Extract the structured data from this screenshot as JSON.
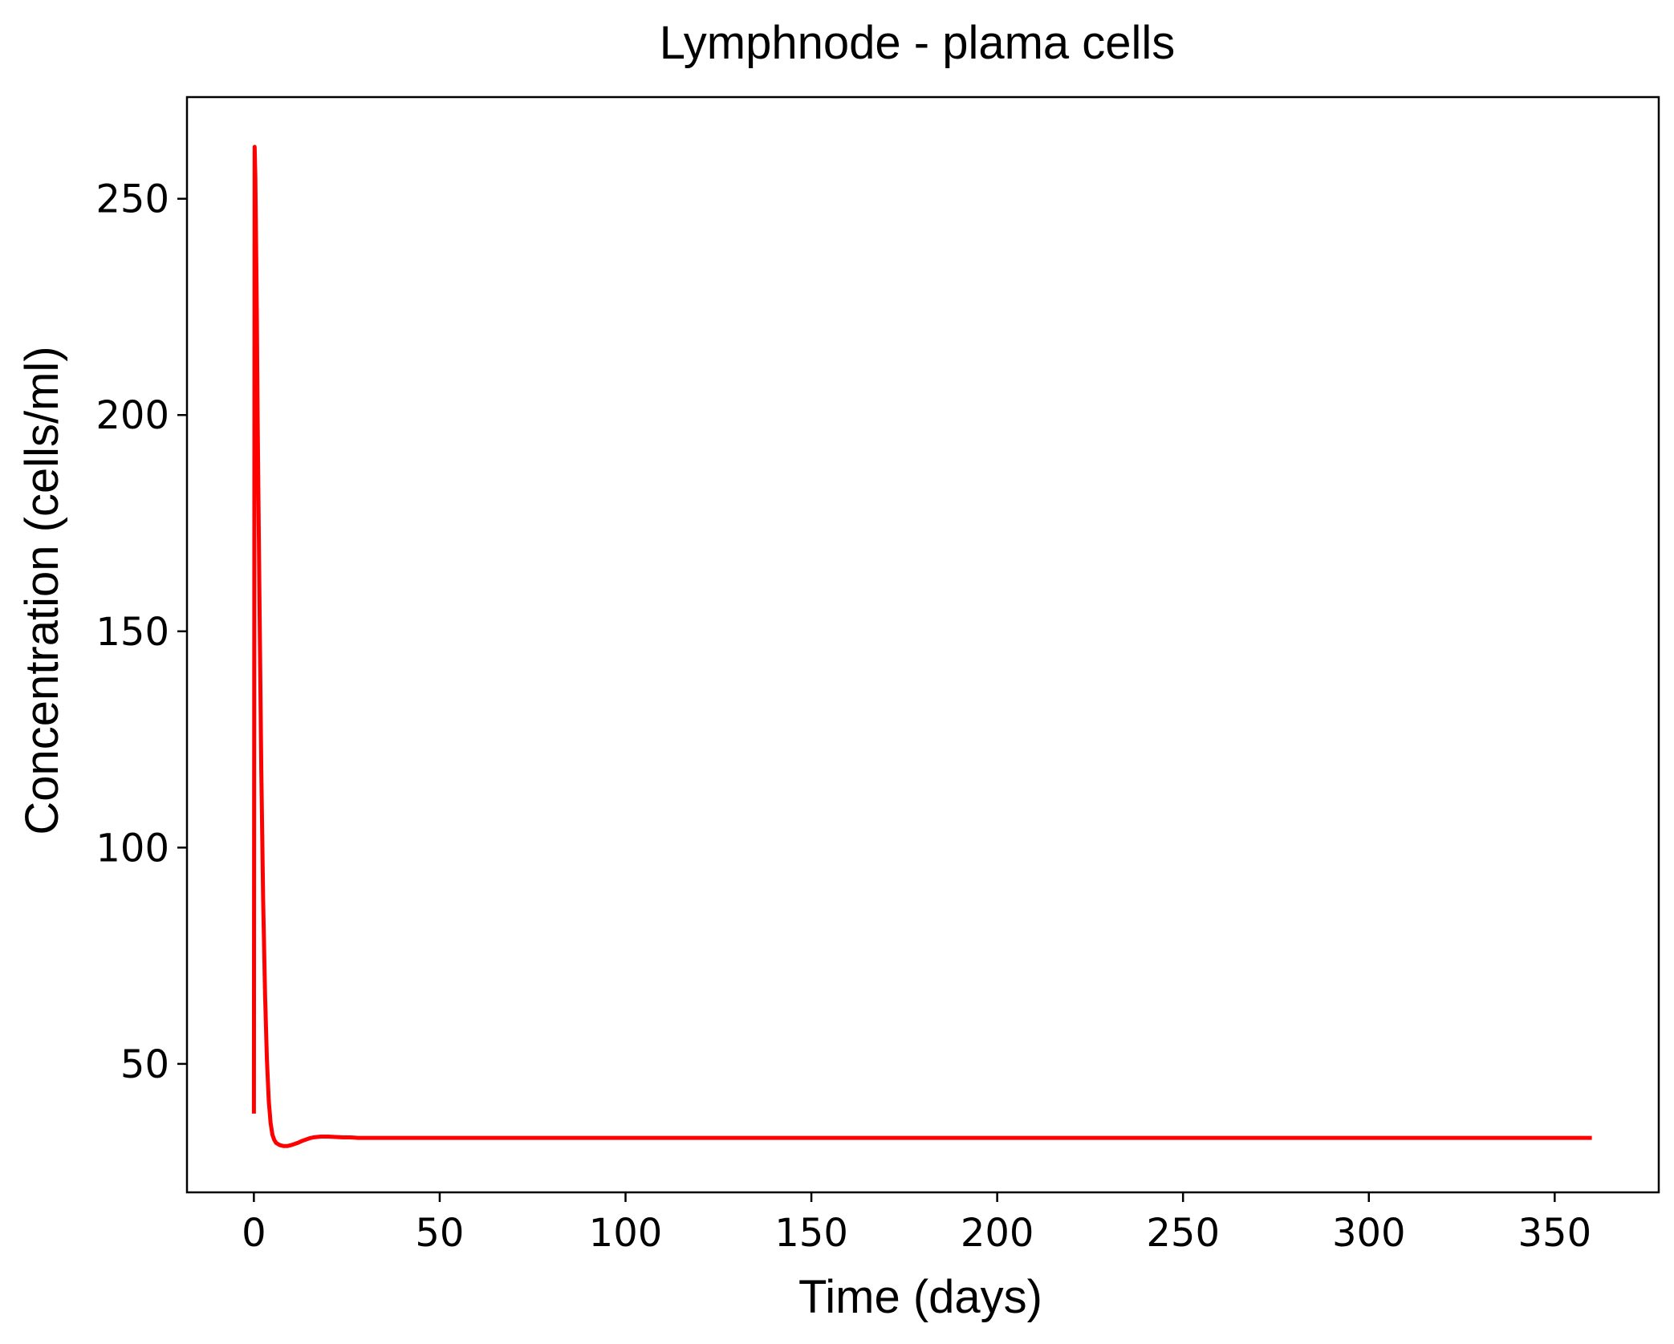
{
  "chart_data": {
    "type": "line",
    "title": "Lymphnode - plama cells",
    "xlabel": "Time (days)",
    "ylabel": "Concentration (cells/ml)",
    "xlim": [
      -18,
      378
    ],
    "ylim": [
      20.3,
      273.5
    ],
    "xticks": [
      0,
      50,
      100,
      150,
      200,
      250,
      300,
      350
    ],
    "yticks": [
      50,
      100,
      150,
      200,
      250
    ],
    "grid": false,
    "legend": "none",
    "series": [
      {
        "color": "#ff0000",
        "x": [
          0,
          0.2,
          0.4,
          0.6,
          0.8,
          1,
          1.5,
          2,
          2.5,
          3,
          3.5,
          4,
          4.5,
          5,
          5.5,
          6,
          7,
          8,
          9,
          10,
          11,
          12,
          13,
          14,
          15,
          16,
          17,
          18,
          19,
          20,
          22,
          24,
          26,
          28,
          30,
          35,
          40,
          50,
          60,
          80,
          100,
          150,
          200,
          250,
          300,
          350,
          360
        ],
        "y": [
          38.5,
          262,
          255,
          240,
          222,
          200,
          158,
          118,
          88,
          66,
          51,
          41.5,
          36.3,
          33.6,
          32.4,
          31.7,
          31.2,
          31.0,
          31.0,
          31.2,
          31.5,
          31.8,
          32.2,
          32.5,
          32.8,
          33.0,
          33.1,
          33.2,
          33.2,
          33.2,
          33.1,
          33.0,
          33.0,
          32.9,
          32.9,
          32.9,
          32.9,
          32.9,
          32.9,
          32.9,
          32.9,
          32.9,
          32.9,
          32.9,
          32.9,
          32.9,
          32.9
        ]
      }
    ]
  }
}
